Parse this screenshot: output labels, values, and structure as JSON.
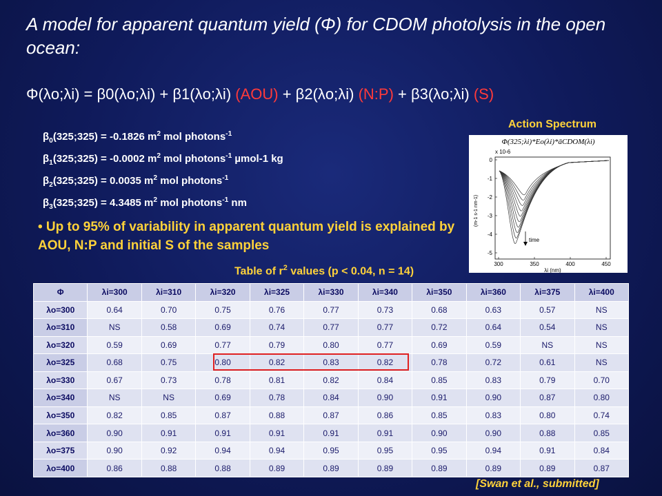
{
  "title": "A model for apparent quantum yield (Φ) for CDOM photolysis in the open ocean:",
  "equation": {
    "lhs": "Φ(λo;λi) = β0(λo;λi) + β1(λo;λi) ",
    "aou": "(AOU)",
    "mid1": " + β2(λo;λi) ",
    "np": "(N:P)",
    "mid2": " + β3(λo;λi) ",
    "s": "(S)"
  },
  "betas": [
    {
      "name": "β",
      "sub": "0",
      "args": "(325;325)",
      "eq": " = -0.1826 m",
      "sup1": "2",
      "unit1": " mol photons",
      "sup2": "-1",
      "tail": ""
    },
    {
      "name": "β",
      "sub": "1",
      "args": "(325;325)",
      "eq": " = -0.0002 m",
      "sup1": "2",
      "unit1": " mol photons",
      "sup2": "-1",
      "tail": " µmol-1 kg"
    },
    {
      "name": "β",
      "sub": "2",
      "args": "(325;325)",
      "eq": " = 0.0035 m",
      "sup1": "2",
      "unit1": " mol photons",
      "sup2": "-1",
      "tail": ""
    },
    {
      "name": "β",
      "sub": "3",
      "args": "(325;325)",
      "eq": " = 4.3485 m",
      "sup1": "2",
      "unit1": " mol photons",
      "sup2": "-1",
      "tail": " nm"
    }
  ],
  "bullet": "• Up to 95% of variability in apparent quantum yield is explained by AOU, N:P and initial S of the samples",
  "action_spectrum": {
    "title": "Action Spectrum",
    "formula": "Φ(325;λi)*Eo(λi)*āCDOM(λi)",
    "y_scale": "x 10-6",
    "y_unit": "(m-1 s-1 nm-1)",
    "y_ticks": [
      "0",
      "-1",
      "-2",
      "-3",
      "-4",
      "-5"
    ],
    "x_ticks": [
      "300",
      "350",
      "400",
      "450"
    ],
    "x_label": "λi (nm)",
    "annotation": "time"
  },
  "table_caption": "Table of r2 values (p < 0.04, n = 14)",
  "table": {
    "corner": "Φ",
    "columns": [
      "λi=300",
      "λi=310",
      "λi=320",
      "λi=325",
      "λi=330",
      "λi=340",
      "λi=350",
      "λi=360",
      "λi=375",
      "λi=400"
    ],
    "rows": [
      {
        "label": "λo=300",
        "values": [
          "0.64",
          "0.70",
          "0.75",
          "0.76",
          "0.77",
          "0.73",
          "0.68",
          "0.63",
          "0.57",
          "NS"
        ]
      },
      {
        "label": "λo=310",
        "values": [
          "NS",
          "0.58",
          "0.69",
          "0.74",
          "0.77",
          "0.77",
          "0.72",
          "0.64",
          "0.54",
          "NS"
        ]
      },
      {
        "label": "λo=320",
        "values": [
          "0.59",
          "0.69",
          "0.77",
          "0.79",
          "0.80",
          "0.77",
          "0.69",
          "0.59",
          "NS",
          "NS"
        ]
      },
      {
        "label": "λo=325",
        "values": [
          "0.68",
          "0.75",
          "0.80",
          "0.82",
          "0.83",
          "0.82",
          "0.78",
          "0.72",
          "0.61",
          "NS"
        ]
      },
      {
        "label": "λo=330",
        "values": [
          "0.67",
          "0.73",
          "0.78",
          "0.81",
          "0.82",
          "0.84",
          "0.85",
          "0.83",
          "0.79",
          "0.70"
        ]
      },
      {
        "label": "λo=340",
        "values": [
          "NS",
          "NS",
          "0.69",
          "0.78",
          "0.84",
          "0.90",
          "0.91",
          "0.90",
          "0.87",
          "0.80"
        ]
      },
      {
        "label": "λo=350",
        "values": [
          "0.82",
          "0.85",
          "0.87",
          "0.88",
          "0.87",
          "0.86",
          "0.85",
          "0.83",
          "0.80",
          "0.74"
        ]
      },
      {
        "label": "λo=360",
        "values": [
          "0.90",
          "0.91",
          "0.91",
          "0.91",
          "0.91",
          "0.91",
          "0.90",
          "0.90",
          "0.88",
          "0.85"
        ]
      },
      {
        "label": "λo=375",
        "values": [
          "0.90",
          "0.92",
          "0.94",
          "0.94",
          "0.95",
          "0.95",
          "0.95",
          "0.94",
          "0.91",
          "0.84"
        ]
      },
      {
        "label": "λo=400",
        "values": [
          "0.86",
          "0.88",
          "0.88",
          "0.89",
          "0.89",
          "0.89",
          "0.89",
          "0.89",
          "0.89",
          "0.87"
        ]
      }
    ]
  },
  "citation": "[Swan et al., submitted]",
  "colors": {
    "accent_red": "#ff3a3a",
    "accent_yellow": "#ffd23a",
    "background": "#0f1a5a"
  }
}
